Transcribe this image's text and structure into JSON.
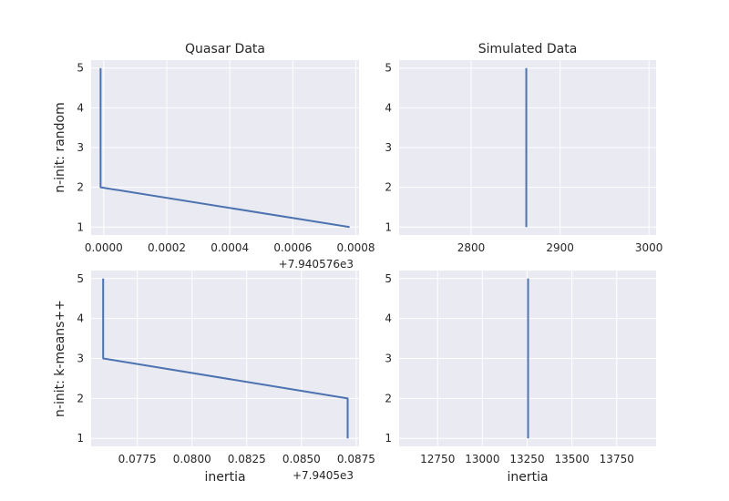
{
  "chart_data": [
    {
      "type": "line",
      "title": "Quasar Data",
      "ylabel": "n-init: random",
      "xlabel": "",
      "x_offset_label": "+7.940576e3",
      "x_tick_labels": [
        "0.0000",
        "0.0002",
        "0.0004",
        "0.0006",
        "0.0008"
      ],
      "x_ticks": [
        0.0,
        0.0002,
        0.0004,
        0.0006,
        0.0008
      ],
      "xlim": [
        -4e-05,
        0.00081
      ],
      "y_ticks": [
        1,
        2,
        3,
        4,
        5
      ],
      "y_tick_labels": [
        "1",
        "2",
        "3",
        "4",
        "5"
      ],
      "ylim": [
        0.8,
        5.2
      ],
      "series": [
        {
          "x": [
            0.00078,
            -1e-05,
            -1e-05,
            -1e-05,
            -1e-05
          ],
          "y": [
            1,
            2,
            3,
            4,
            5
          ]
        }
      ]
    },
    {
      "type": "line",
      "title": "Simulated Data",
      "ylabel": "",
      "xlabel": "",
      "x_offset_label": "",
      "x_tick_labels": [
        "2800",
        "2900",
        "3000"
      ],
      "x_ticks": [
        2800,
        2900,
        3000
      ],
      "xlim": [
        2719,
        3008
      ],
      "y_ticks": [
        1,
        2,
        3,
        4,
        5
      ],
      "y_tick_labels": [
        "1",
        "2",
        "3",
        "4",
        "5"
      ],
      "ylim": [
        0.8,
        5.2
      ],
      "series": [
        {
          "x": [
            2862,
            2862,
            2862,
            2862,
            2862
          ],
          "y": [
            1,
            2,
            3,
            4,
            5
          ]
        }
      ]
    },
    {
      "type": "line",
      "title": "",
      "ylabel": "n-init: k-means++",
      "xlabel": "inertia",
      "x_offset_label": "+7.9405e3",
      "x_tick_labels": [
        "0.0775",
        "0.0800",
        "0.0825",
        "0.0850",
        "0.0875"
      ],
      "x_ticks": [
        0.0775,
        0.08,
        0.0825,
        0.085,
        0.0875
      ],
      "xlim": [
        0.07539,
        0.08763
      ],
      "y_ticks": [
        1,
        2,
        3,
        4,
        5
      ],
      "y_tick_labels": [
        "1",
        "2",
        "3",
        "4",
        "5"
      ],
      "ylim": [
        0.8,
        5.2
      ],
      "series": [
        {
          "x": [
            0.08711,
            0.08711,
            0.07594,
            0.07594,
            0.07594
          ],
          "y": [
            1,
            2,
            3,
            4,
            5
          ]
        }
      ]
    },
    {
      "type": "line",
      "title": "",
      "ylabel": "",
      "xlabel": "inertia",
      "x_offset_label": "",
      "x_tick_labels": [
        "12750",
        "13000",
        "13250",
        "13500",
        "13750"
      ],
      "x_ticks": [
        12750,
        13000,
        13250,
        13500,
        13750
      ],
      "xlim": [
        12535,
        13970
      ],
      "y_ticks": [
        1,
        2,
        3,
        4,
        5
      ],
      "y_tick_labels": [
        "1",
        "2",
        "3",
        "4",
        "5"
      ],
      "ylim": [
        0.8,
        5.2
      ],
      "series": [
        {
          "x": [
            13255,
            13255,
            13255,
            13255,
            13255
          ],
          "y": [
            1,
            2,
            3,
            4,
            5
          ]
        }
      ]
    }
  ]
}
